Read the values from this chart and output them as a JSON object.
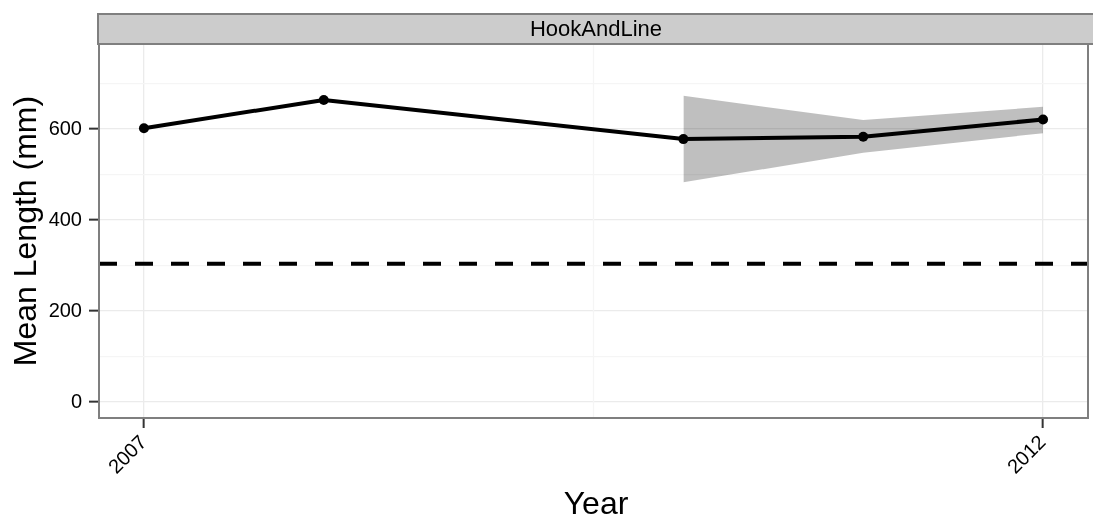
{
  "chart_data": {
    "type": "line",
    "title": "HookAndLine",
    "xlabel": "Year",
    "ylabel": "Mean Length (mm)",
    "x": [
      2007,
      2008,
      2010,
      2011,
      2012
    ],
    "series": [
      {
        "color": "#000000",
        "values": [
          602,
          664,
          578,
          583,
          621
        ],
        "lower": [
          null,
          null,
          483,
          548,
          591
        ],
        "upper": [
          null,
          null,
          673,
          620,
          649
        ]
      }
    ],
    "xlim": [
      2006.75,
      2012.25
    ],
    "xticks": [
      2007,
      2012
    ],
    "ylim": [
      -35,
      787
    ],
    "yticks": [
      0,
      200,
      400,
      600
    ],
    "ref_lines": [
      {
        "axis": "y",
        "value": 304,
        "color": "#000000",
        "line_style": "dashed"
      }
    ],
    "grid": true,
    "marker": "circle",
    "line_style": "solid"
  }
}
